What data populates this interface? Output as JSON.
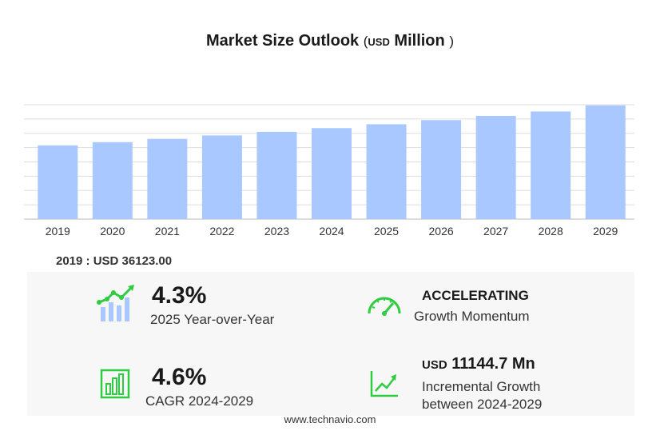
{
  "title": {
    "main": "Market Size Outlook",
    "unit_open": "(",
    "unit_currency": "USD",
    "unit_scale": "Million",
    "unit_close": ")"
  },
  "chart_data": {
    "type": "bar",
    "title": "Market Size Outlook ( USD Million )",
    "categories": [
      "2019",
      "2020",
      "2021",
      "2022",
      "2023",
      "2024",
      "2025",
      "2026",
      "2027",
      "2028",
      "2029"
    ],
    "values": [
      36123.0,
      37670,
      39280,
      40970,
      42720,
      44550,
      46460,
      48450,
      50530,
      52700,
      55695
    ],
    "xlabel": "",
    "ylabel": "",
    "ylim": [
      0,
      56000
    ],
    "grid": true,
    "bar_color": "#a9c8ff"
  },
  "base_label": "2019 : USD  36123.00",
  "stats": {
    "yoy_value": "4.3%",
    "yoy_label": "2025 Year-over-Year",
    "momentum_value": "ACCELERATING",
    "momentum_label": "Growth Momentum",
    "cagr_value": "4.6%",
    "cagr_label": "CAGR  2024-2029",
    "incremental_currency": "USD",
    "incremental_value": "11144.7 Mn",
    "incremental_label_1": "Incremental Growth",
    "incremental_label_2": "between 2024-2029"
  },
  "icons": {
    "accent": "#2ecc40",
    "bar_icon_color": "#a9c8ff",
    "names": [
      "chart-growth-icon",
      "speedometer-icon",
      "bar-chart-icon",
      "trend-line-icon"
    ]
  },
  "footer": "www.technavio.com"
}
